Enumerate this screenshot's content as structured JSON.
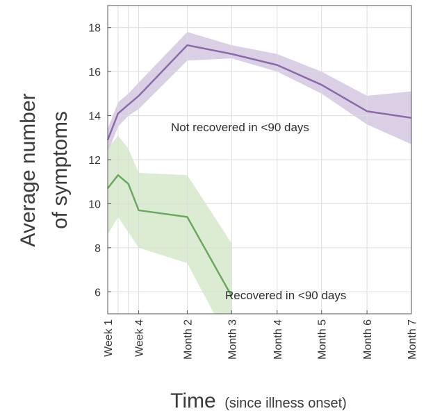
{
  "chart_data": {
    "type": "line",
    "xlabel": "Time",
    "xlabel_note": "(since illness onset)",
    "ylabel_line1": "Average number",
    "ylabel_line2": "of symptoms",
    "x_tick_labels": [
      "Week 1",
      "Week 4",
      "Month 2",
      "Month 3",
      "Month 4",
      "Month 5",
      "Month 6",
      "Month 7"
    ],
    "x_tick_weeks": [
      1,
      4,
      8.7,
      13,
      17.4,
      21.7,
      26.1,
      30.4
    ],
    "x_minor_weeks": [
      2,
      3
    ],
    "xlim": [
      1,
      30.4
    ],
    "y_ticks": [
      6,
      8,
      10,
      12,
      14,
      16,
      18
    ],
    "ylim": [
      5,
      19
    ],
    "grid": true,
    "series": [
      {
        "name": "Not recovered in <90 days",
        "color": "#8a6aa8",
        "band_color": "#cdbfdc",
        "x": [
          1,
          2,
          3,
          4,
          8.7,
          13,
          17.4,
          21.7,
          26.1,
          30.4
        ],
        "y": [
          12.9,
          14.1,
          14.5,
          14.9,
          17.2,
          16.8,
          16.3,
          15.4,
          14.2,
          13.9
        ],
        "lower": [
          12.3,
          13.5,
          14.0,
          14.3,
          16.5,
          16.6,
          16.0,
          15.0,
          13.6,
          12.7
        ],
        "upper": [
          13.4,
          14.6,
          15.0,
          15.5,
          17.8,
          17.2,
          16.8,
          16.0,
          14.9,
          15.1
        ]
      },
      {
        "name": "Recovered in <90 days",
        "color": "#6aa860",
        "band_color": "#cfe5c4",
        "x": [
          1,
          2,
          3,
          4,
          8.7,
          13
        ],
        "y": [
          10.7,
          11.3,
          10.9,
          9.7,
          9.4,
          5.8
        ],
        "lower": [
          8.6,
          9.4,
          8.7,
          8.0,
          7.3,
          3.5
        ],
        "upper": [
          12.5,
          13.1,
          12.5,
          11.4,
          11.3,
          8.2
        ]
      }
    ]
  }
}
